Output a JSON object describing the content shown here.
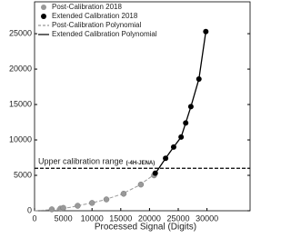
{
  "chart_data": {
    "type": "scatter",
    "x_label": "Processed Signal (Digits)",
    "xlim": [
      0,
      37500
    ],
    "ylim": [
      0,
      29500
    ],
    "xticks": [
      0,
      5000,
      10000,
      15000,
      20000,
      25000,
      30000
    ],
    "yticks": [
      0,
      5000,
      10000,
      15000,
      20000,
      25000
    ],
    "series": [
      {
        "name": "Post-Calibration 2018",
        "color": "#999999",
        "kind": "point",
        "x": [
          3000,
          4500,
          5000,
          7500,
          10000,
          12500,
          15500,
          18500,
          20800
        ],
        "values": [
          200,
          300,
          400,
          700,
          1100,
          1600,
          2400,
          3700,
          5000
        ]
      },
      {
        "name": "Extended Calibration 2018",
        "color": "#000000",
        "kind": "point",
        "x": [
          21000,
          22800,
          24200,
          25500,
          26300,
          27200,
          28600,
          29800
        ],
        "values": [
          5300,
          7400,
          9000,
          10400,
          12400,
          14700,
          18600,
          25300
        ]
      },
      {
        "name": "Post-Calibration Polynomial",
        "color": "#999999",
        "kind": "dashed",
        "x": [
          0,
          3000,
          6000,
          9000,
          12000,
          15000,
          18000,
          21000
        ],
        "values": [
          0,
          150,
          450,
          950,
          1500,
          2300,
          3500,
          5200
        ]
      },
      {
        "name": "Extended Calibration Polynomial",
        "color": "#000000",
        "kind": "solid",
        "x": [
          20800,
          22800,
          24200,
          25500,
          26300,
          27200,
          28600,
          29800
        ],
        "values": [
          5000,
          7400,
          9000,
          10400,
          12400,
          14700,
          18600,
          25300
        ]
      }
    ],
    "reference_line": {
      "value": 6000,
      "label": "Upper calibration range",
      "sublabel": "(-4H-JENA)"
    },
    "legend": "upper left"
  }
}
